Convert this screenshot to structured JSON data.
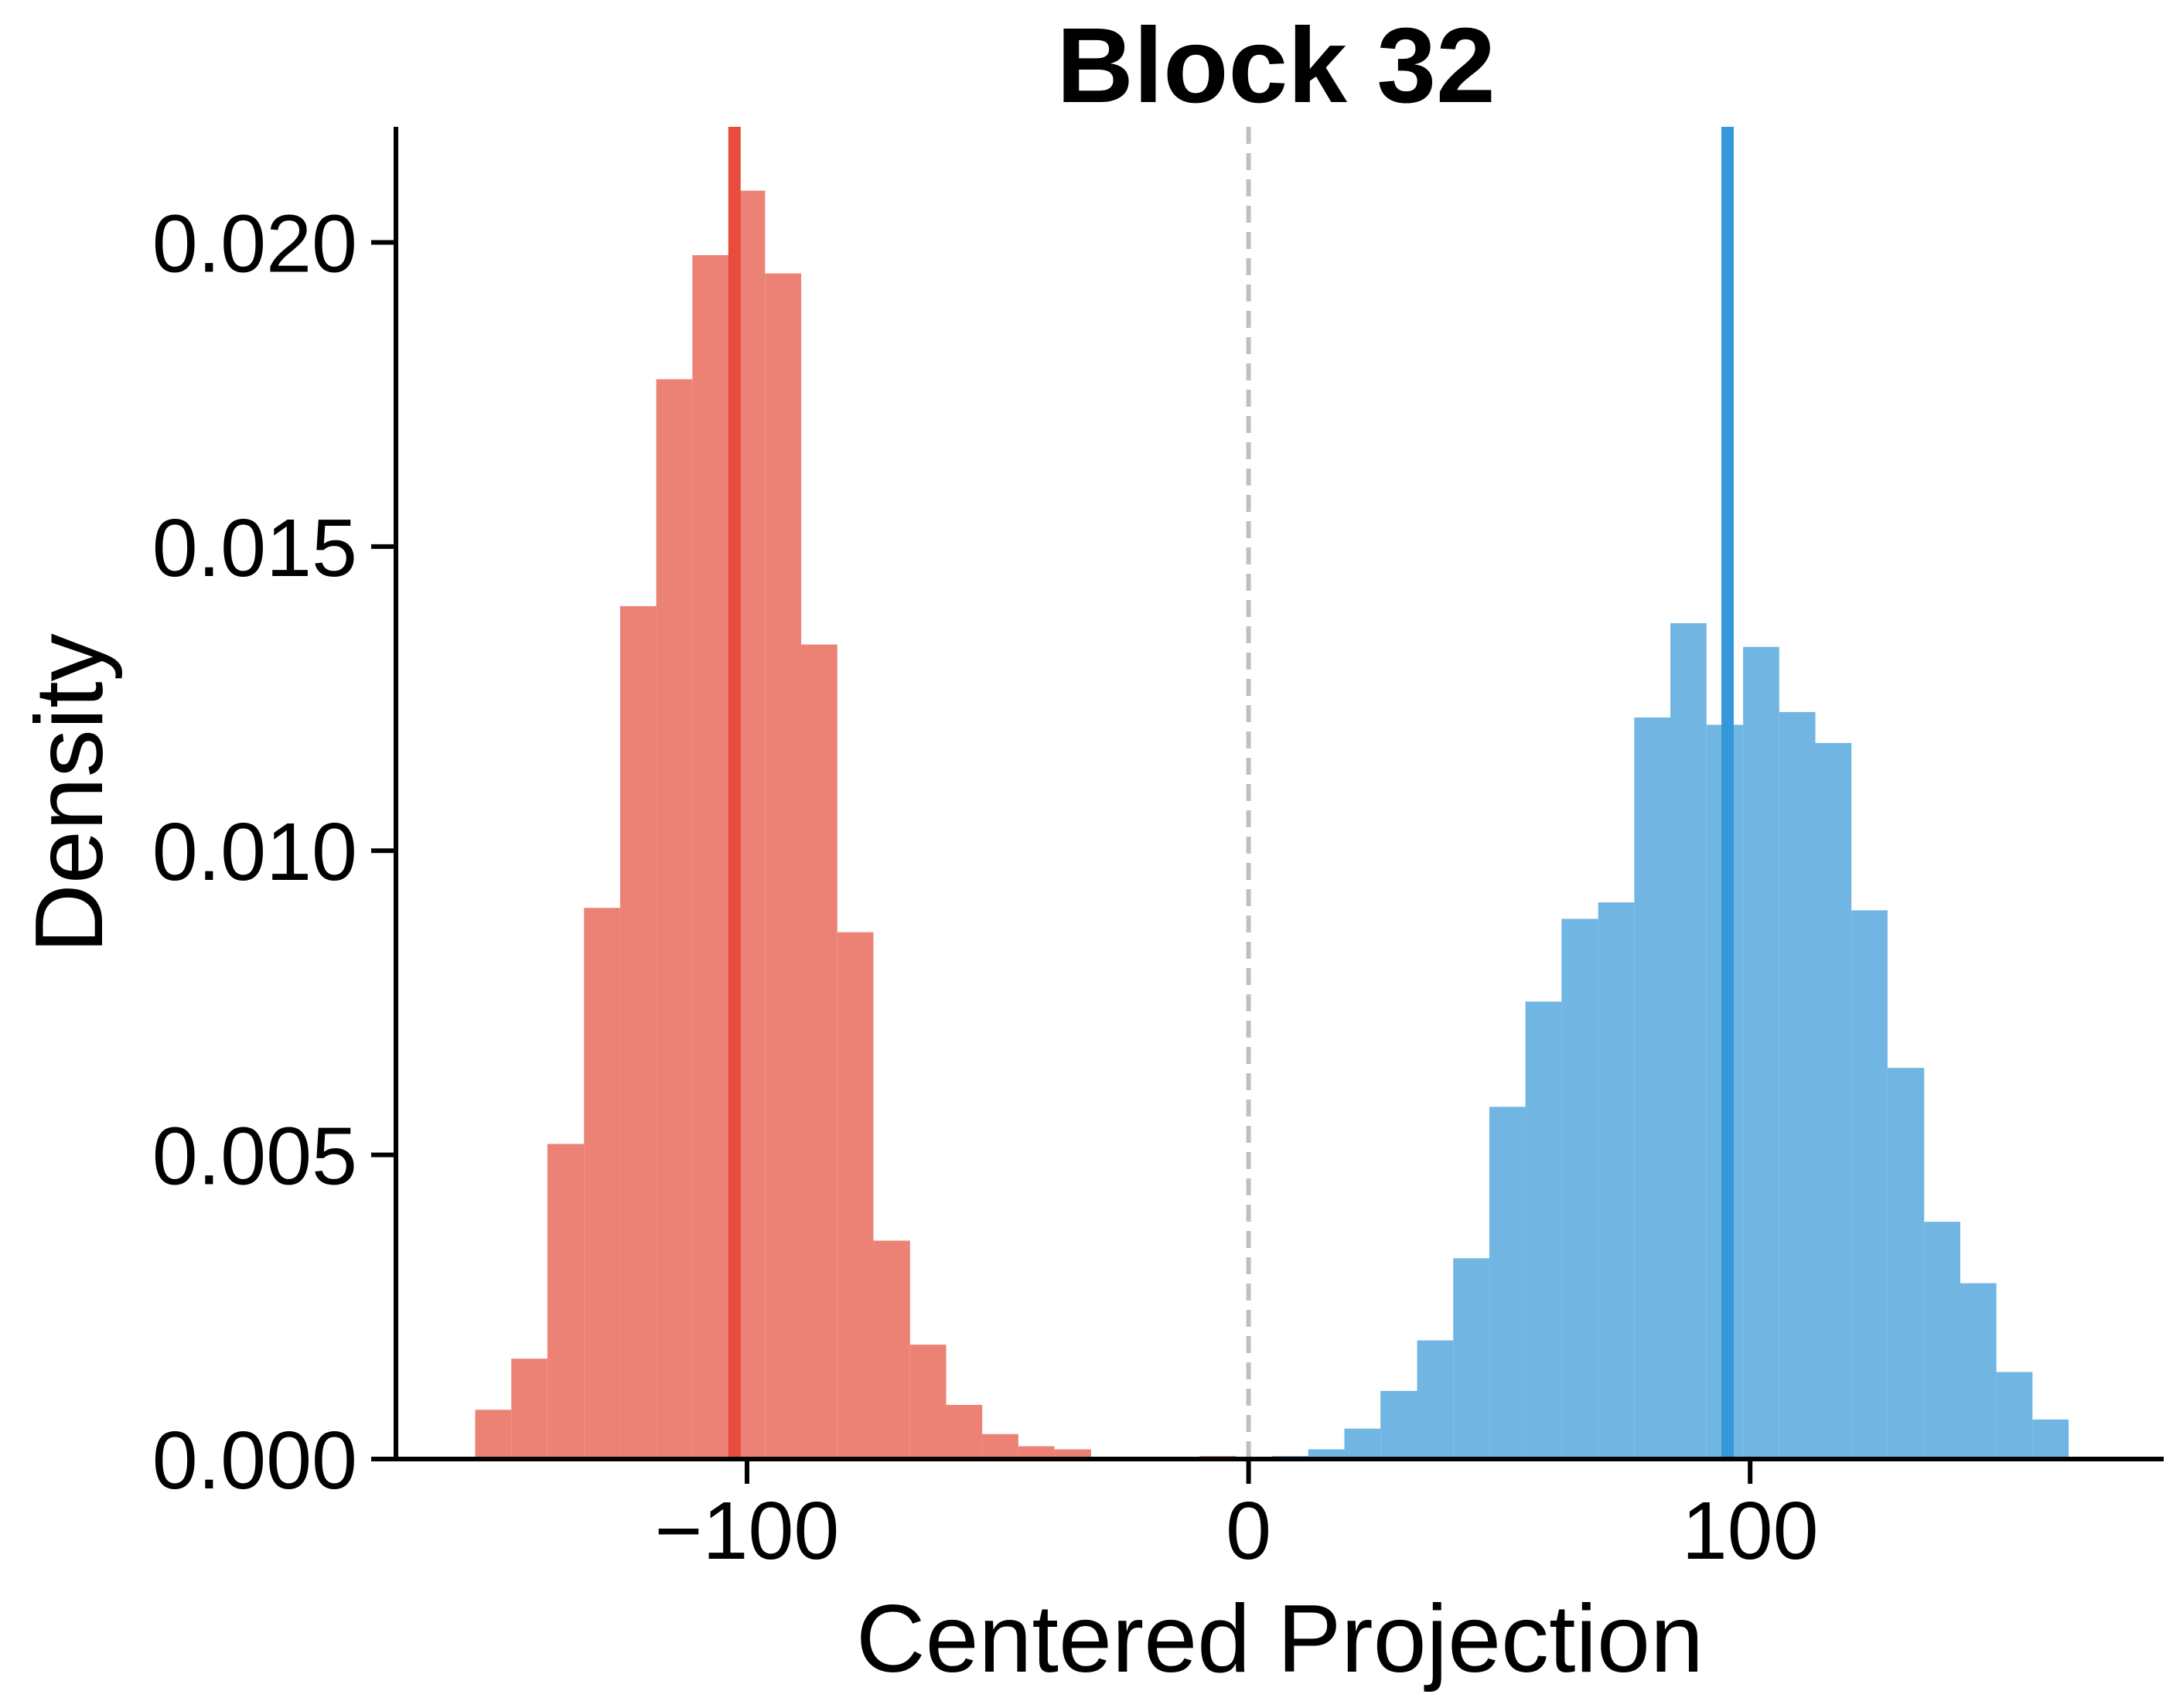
{
  "chart_data": {
    "type": "bar",
    "title": "Block 32",
    "xlabel": "Centered Projection",
    "ylabel": "Density",
    "xlim": [
      -170,
      182
    ],
    "ylim": [
      0,
      0.0219
    ],
    "xticks": [
      {
        "value": -100,
        "label": "−100"
      },
      {
        "value": 0,
        "label": "0"
      },
      {
        "value": 100,
        "label": "100"
      }
    ],
    "yticks": [
      {
        "value": 0.0,
        "label": "0.000"
      },
      {
        "value": 0.005,
        "label": "0.005"
      },
      {
        "value": 0.01,
        "label": "0.010"
      },
      {
        "value": 0.015,
        "label": "0.015"
      },
      {
        "value": 0.02,
        "label": "0.020"
      }
    ],
    "grid": false,
    "zero_line": {
      "x": 0,
      "color": "#c0c0c0",
      "style": "dashed"
    },
    "series": [
      {
        "color": "#ec8276",
        "mean_line": {
          "x": -102.5,
          "color": "#e74c3c"
        },
        "bins": [
          {
            "x0": -154.2,
            "x1": -147.0,
            "y": 0.00081
          },
          {
            "x0": -147.0,
            "x1": -139.8,
            "y": 0.00165
          },
          {
            "x0": -139.8,
            "x1": -132.5,
            "y": 0.00518
          },
          {
            "x0": -132.5,
            "x1": -125.3,
            "y": 0.00906
          },
          {
            "x0": -125.3,
            "x1": -118.1,
            "y": 0.01402
          },
          {
            "x0": -118.1,
            "x1": -110.9,
            "y": 0.01775
          },
          {
            "x0": -110.9,
            "x1": -103.6,
            "y": 0.01979
          },
          {
            "x0": -103.6,
            "x1": -96.4,
            "y": 0.02085
          },
          {
            "x0": -96.4,
            "x1": -89.2,
            "y": 0.01949
          },
          {
            "x0": -89.2,
            "x1": -82.0,
            "y": 0.01339
          },
          {
            "x0": -82.0,
            "x1": -74.8,
            "y": 0.00866
          },
          {
            "x0": -74.8,
            "x1": -67.5,
            "y": 0.00359
          },
          {
            "x0": -67.5,
            "x1": -60.3,
            "y": 0.00188
          },
          {
            "x0": -60.3,
            "x1": -53.1,
            "y": 0.00089
          },
          {
            "x0": -53.1,
            "x1": -45.9,
            "y": 0.00041
          },
          {
            "x0": -45.9,
            "x1": -38.7,
            "y": 0.00021
          },
          {
            "x0": -38.7,
            "x1": -31.4,
            "y": 0.00016
          },
          {
            "x0": -31.4,
            "x1": -24.2,
            "y": 3e-05
          },
          {
            "x0": -24.2,
            "x1": -17.0,
            "y": 3e-05
          },
          {
            "x0": -17.0,
            "x1": -9.8,
            "y": 3e-05
          },
          {
            "x0": -9.8,
            "x1": -2.5,
            "y": 5e-05
          }
        ]
      },
      {
        "color": "#71b5e3",
        "mean_line": {
          "x": 95.5,
          "color": "#3498db"
        },
        "bins": [
          {
            "x0": -2.5,
            "x1": 4.7,
            "y": 3e-05
          },
          {
            "x0": 4.7,
            "x1": 11.9,
            "y": 5e-05
          },
          {
            "x0": 11.9,
            "x1": 19.1,
            "y": 0.00016
          },
          {
            "x0": 19.1,
            "x1": 26.3,
            "y": 0.0005
          },
          {
            "x0": 26.3,
            "x1": 33.6,
            "y": 0.00112
          },
          {
            "x0": 33.6,
            "x1": 40.8,
            "y": 0.00195
          },
          {
            "x0": 40.8,
            "x1": 48.0,
            "y": 0.0033
          },
          {
            "x0": 48.0,
            "x1": 55.2,
            "y": 0.00579
          },
          {
            "x0": 55.2,
            "x1": 62.4,
            "y": 0.00752
          },
          {
            "x0": 62.4,
            "x1": 69.7,
            "y": 0.00888
          },
          {
            "x0": 69.7,
            "x1": 76.9,
            "y": 0.00915
          },
          {
            "x0": 76.9,
            "x1": 84.1,
            "y": 0.01219
          },
          {
            "x0": 84.1,
            "x1": 91.3,
            "y": 0.01374
          },
          {
            "x0": 91.3,
            "x1": 98.6,
            "y": 0.01207
          },
          {
            "x0": 98.6,
            "x1": 105.8,
            "y": 0.01335
          },
          {
            "x0": 105.8,
            "x1": 113.0,
            "y": 0.01228
          },
          {
            "x0": 113.0,
            "x1": 120.2,
            "y": 0.01177
          },
          {
            "x0": 120.2,
            "x1": 127.4,
            "y": 0.00902
          },
          {
            "x0": 127.4,
            "x1": 134.7,
            "y": 0.00643
          },
          {
            "x0": 134.7,
            "x1": 141.9,
            "y": 0.0039
          },
          {
            "x0": 141.9,
            "x1": 149.1,
            "y": 0.00289
          },
          {
            "x0": 149.1,
            "x1": 156.3,
            "y": 0.00143
          },
          {
            "x0": 156.3,
            "x1": 163.5,
            "y": 0.00065
          }
        ]
      }
    ]
  }
}
